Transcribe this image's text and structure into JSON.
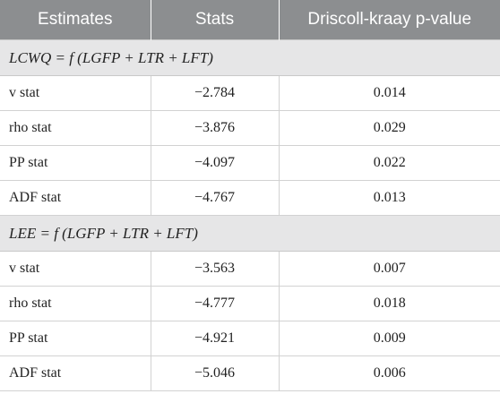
{
  "table": {
    "headers": [
      "Estimates",
      "Stats",
      "Driscoll-kraay p-value"
    ],
    "groups": [
      {
        "title": "LCWQ = f (LGFP + LTR + LFT)",
        "rows": [
          {
            "estimate": "v stat",
            "stat": "−2.784",
            "pvalue": "0.014"
          },
          {
            "estimate": "rho stat",
            "stat": "−3.876",
            "pvalue": "0.029"
          },
          {
            "estimate": "PP stat",
            "stat": "−4.097",
            "pvalue": "0.022"
          },
          {
            "estimate": "ADF stat",
            "stat": "−4.767",
            "pvalue": "0.013"
          }
        ]
      },
      {
        "title": "LEE = f (LGFP + LTR + LFT)",
        "rows": [
          {
            "estimate": "v stat",
            "stat": "−3.563",
            "pvalue": "0.007"
          },
          {
            "estimate": "rho stat",
            "stat": "−4.777",
            "pvalue": "0.018"
          },
          {
            "estimate": "PP stat",
            "stat": "−4.921",
            "pvalue": "0.009"
          },
          {
            "estimate": "ADF stat",
            "stat": "−5.046",
            "pvalue": "0.006"
          }
        ]
      }
    ]
  }
}
